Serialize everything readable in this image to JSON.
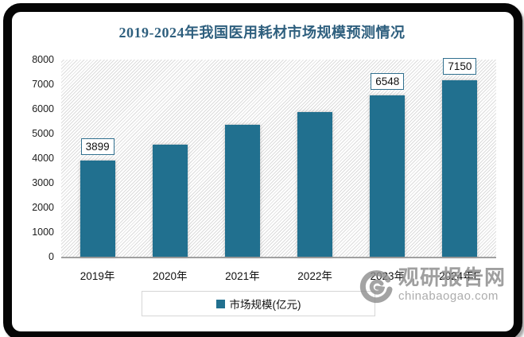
{
  "chart_data": {
    "type": "bar",
    "title": "2019-2024年我国医用耗材市场规模预测情况",
    "categories": [
      "2019年",
      "2020年",
      "2021年",
      "2022年",
      "2023年",
      "2024年E"
    ],
    "series": [
      {
        "name": "市场规模(亿元)",
        "values": [
          3899,
          4550,
          5350,
          5880,
          6548,
          7150
        ],
        "data_labels": [
          "3899",
          "",
          "",
          "",
          "6548",
          "7150"
        ]
      }
    ],
    "ylim": [
      0,
      8000
    ],
    "yticks": [
      0,
      1000,
      2000,
      3000,
      4000,
      5000,
      6000,
      7000,
      8000
    ],
    "xlabel": "",
    "ylabel": "",
    "grid": false,
    "legend_position": "bottom",
    "bar_color": "#21708F",
    "title_color": "#2E5F7E",
    "plot_hatch": "diagonal"
  },
  "legend": {
    "label": "市场规模(亿元)"
  },
  "watermark": {
    "name": "观研报告网",
    "domain": "chinabaogao.com"
  }
}
